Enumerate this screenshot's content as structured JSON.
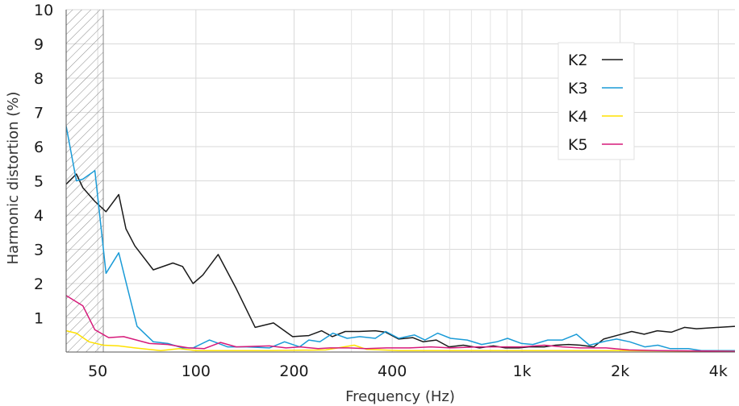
{
  "chart_data": {
    "type": "line",
    "title": "",
    "xlabel": "Frequency (Hz)",
    "ylabel": "Harmonic distortion (%)",
    "xscale": "log",
    "xlim": [
      40,
      4500
    ],
    "ylim": [
      0,
      10
    ],
    "grid": true,
    "legend_position": "top-right",
    "hatched_region_hz": [
      40,
      52
    ],
    "x_ticks": [
      {
        "value": 50,
        "label": "50"
      },
      {
        "value": 100,
        "label": "100"
      },
      {
        "value": 200,
        "label": "200"
      },
      {
        "value": 400,
        "label": "400"
      },
      {
        "value": 1000,
        "label": "1k"
      },
      {
        "value": 2000,
        "label": "2k"
      },
      {
        "value": 4000,
        "label": "4k"
      }
    ],
    "x_grid_minor": [
      300,
      500,
      600,
      700,
      800,
      900,
      3000
    ],
    "y_ticks": [
      {
        "value": 1,
        "label": "1"
      },
      {
        "value": 2,
        "label": "2"
      },
      {
        "value": 3,
        "label": "3"
      },
      {
        "value": 4,
        "label": "4"
      },
      {
        "value": 5,
        "label": "5"
      },
      {
        "value": 6,
        "label": "6"
      },
      {
        "value": 7,
        "label": "7"
      },
      {
        "value": 8,
        "label": "8"
      },
      {
        "value": 9,
        "label": "9"
      },
      {
        "value": 10,
        "label": "10"
      }
    ],
    "series": [
      {
        "name": "K2",
        "color": "#1a1a1a",
        "points": [
          [
            40,
            4.9
          ],
          [
            43,
            5.2
          ],
          [
            45,
            4.8
          ],
          [
            49,
            4.4
          ],
          [
            53,
            4.1
          ],
          [
            58,
            4.6
          ],
          [
            61,
            3.6
          ],
          [
            65,
            3.1
          ],
          [
            74,
            2.4
          ],
          [
            85,
            2.6
          ],
          [
            91,
            2.5
          ],
          [
            98,
            2.0
          ],
          [
            105,
            2.25
          ],
          [
            117,
            2.85
          ],
          [
            133,
            1.85
          ],
          [
            152,
            0.72
          ],
          [
            173,
            0.85
          ],
          [
            198,
            0.45
          ],
          [
            222,
            0.48
          ],
          [
            243,
            0.62
          ],
          [
            262,
            0.45
          ],
          [
            287,
            0.6
          ],
          [
            316,
            0.6
          ],
          [
            355,
            0.62
          ],
          [
            382,
            0.58
          ],
          [
            419,
            0.38
          ],
          [
            462,
            0.42
          ],
          [
            498,
            0.3
          ],
          [
            546,
            0.35
          ],
          [
            597,
            0.15
          ],
          [
            661,
            0.2
          ],
          [
            741,
            0.12
          ],
          [
            817,
            0.18
          ],
          [
            890,
            0.12
          ],
          [
            978,
            0.12
          ],
          [
            1050,
            0.15
          ],
          [
            1170,
            0.15
          ],
          [
            1270,
            0.2
          ],
          [
            1390,
            0.22
          ],
          [
            1510,
            0.2
          ],
          [
            1660,
            0.15
          ],
          [
            1780,
            0.38
          ],
          [
            1980,
            0.5
          ],
          [
            2170,
            0.6
          ],
          [
            2370,
            0.52
          ],
          [
            2600,
            0.62
          ],
          [
            2870,
            0.58
          ],
          [
            3150,
            0.72
          ],
          [
            3430,
            0.68
          ],
          [
            4500,
            0.75
          ]
        ]
      },
      {
        "name": "K3",
        "color": "#1a9bd7",
        "points": [
          [
            40,
            6.6
          ],
          [
            43,
            5.0
          ],
          [
            45,
            5.05
          ],
          [
            49,
            5.3
          ],
          [
            53,
            2.3
          ],
          [
            58,
            2.9
          ],
          [
            61,
            2.05
          ],
          [
            66,
            0.75
          ],
          [
            74,
            0.3
          ],
          [
            82,
            0.25
          ],
          [
            91,
            0.12
          ],
          [
            98,
            0.12
          ],
          [
            110,
            0.35
          ],
          [
            125,
            0.15
          ],
          [
            143,
            0.15
          ],
          [
            168,
            0.12
          ],
          [
            187,
            0.3
          ],
          [
            208,
            0.15
          ],
          [
            222,
            0.35
          ],
          [
            240,
            0.3
          ],
          [
            263,
            0.55
          ],
          [
            291,
            0.4
          ],
          [
            318,
            0.45
          ],
          [
            355,
            0.4
          ],
          [
            382,
            0.6
          ],
          [
            419,
            0.4
          ],
          [
            468,
            0.5
          ],
          [
            504,
            0.35
          ],
          [
            551,
            0.55
          ],
          [
            604,
            0.4
          ],
          [
            679,
            0.35
          ],
          [
            752,
            0.22
          ],
          [
            838,
            0.3
          ],
          [
            903,
            0.4
          ],
          [
            997,
            0.25
          ],
          [
            1080,
            0.22
          ],
          [
            1200,
            0.35
          ],
          [
            1330,
            0.35
          ],
          [
            1470,
            0.52
          ],
          [
            1610,
            0.2
          ],
          [
            1810,
            0.32
          ],
          [
            1950,
            0.38
          ],
          [
            2140,
            0.3
          ],
          [
            2380,
            0.15
          ],
          [
            2610,
            0.2
          ],
          [
            2850,
            0.1
          ],
          [
            3240,
            0.1
          ],
          [
            3550,
            0.04
          ],
          [
            4500,
            0.04
          ]
        ]
      },
      {
        "name": "K4",
        "color": "#ffe100",
        "points": [
          [
            40,
            0.62
          ],
          [
            43,
            0.55
          ],
          [
            47,
            0.3
          ],
          [
            52,
            0.2
          ],
          [
            58,
            0.18
          ],
          [
            65,
            0.12
          ],
          [
            78,
            0.04
          ],
          [
            89,
            0.1
          ],
          [
            100,
            0.04
          ],
          [
            120,
            0.04
          ],
          [
            168,
            0.04
          ],
          [
            250,
            0.06
          ],
          [
            306,
            0.2
          ],
          [
            333,
            0.08
          ],
          [
            419,
            0.04
          ],
          [
            604,
            0.04
          ],
          [
            1000,
            0.04
          ],
          [
            2000,
            0.04
          ],
          [
            4500,
            0.02
          ]
        ]
      },
      {
        "name": "K5",
        "color": "#d61a7a",
        "points": [
          [
            40,
            1.65
          ],
          [
            45,
            1.35
          ],
          [
            49,
            0.65
          ],
          [
            54,
            0.42
          ],
          [
            60,
            0.45
          ],
          [
            72,
            0.25
          ],
          [
            82,
            0.22
          ],
          [
            95,
            0.12
          ],
          [
            106,
            0.1
          ],
          [
            119,
            0.28
          ],
          [
            133,
            0.15
          ],
          [
            168,
            0.18
          ],
          [
            189,
            0.12
          ],
          [
            209,
            0.15
          ],
          [
            237,
            0.1
          ],
          [
            258,
            0.12
          ],
          [
            294,
            0.12
          ],
          [
            333,
            0.1
          ],
          [
            384,
            0.12
          ],
          [
            451,
            0.12
          ],
          [
            525,
            0.15
          ],
          [
            604,
            0.12
          ],
          [
            735,
            0.15
          ],
          [
            875,
            0.15
          ],
          [
            1000,
            0.15
          ],
          [
            1170,
            0.2
          ],
          [
            1330,
            0.15
          ],
          [
            1510,
            0.12
          ],
          [
            1810,
            0.12
          ],
          [
            2130,
            0.06
          ],
          [
            2610,
            0.04
          ],
          [
            4500,
            0.02
          ]
        ]
      }
    ]
  }
}
